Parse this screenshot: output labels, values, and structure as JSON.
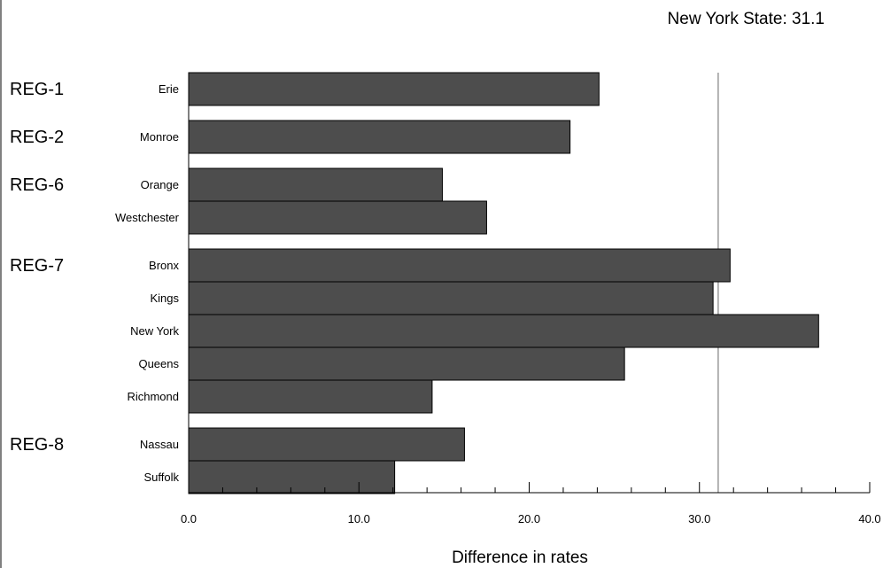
{
  "chart_data": {
    "type": "bar",
    "orientation": "horizontal",
    "title": "",
    "xlabel": "Difference in rates",
    "ylabel": "",
    "xlim": [
      0,
      40
    ],
    "x_ticks": [
      "0.0",
      "10.0",
      "20.0",
      "30.0",
      "40.0"
    ],
    "reference_line": {
      "label": "New York State:  31.1",
      "value": 31.1
    },
    "groups": [
      {
        "region": "REG-1",
        "counties": [
          {
            "name": "Erie",
            "value": 24.1
          }
        ]
      },
      {
        "region": "REG-2",
        "counties": [
          {
            "name": "Monroe",
            "value": 22.4
          }
        ]
      },
      {
        "region": "REG-6",
        "counties": [
          {
            "name": "Orange",
            "value": 14.9
          },
          {
            "name": "Westchester",
            "value": 17.5
          }
        ]
      },
      {
        "region": "REG-7",
        "counties": [
          {
            "name": "Bronx",
            "value": 31.8
          },
          {
            "name": "Kings",
            "value": 30.8
          },
          {
            "name": "New York",
            "value": 37.0
          },
          {
            "name": "Queens",
            "value": 25.6
          },
          {
            "name": "Richmond",
            "value": 14.3
          }
        ]
      },
      {
        "region": "REG-8",
        "counties": [
          {
            "name": "Nassau",
            "value": 16.2
          },
          {
            "name": "Suffolk",
            "value": 12.1
          }
        ]
      }
    ],
    "colors": {
      "bar": "#4d4d4d",
      "bar_stroke": "#000000",
      "reference_line": "#999999"
    },
    "grid": false,
    "legend": "none"
  }
}
